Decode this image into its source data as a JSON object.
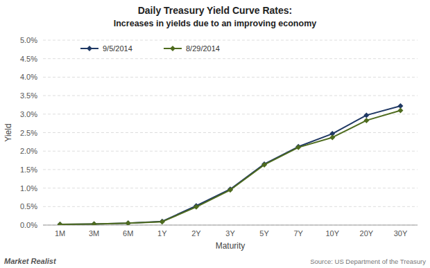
{
  "chart_data": {
    "type": "line",
    "title": "Daily Treasury Yield Curve Rates:",
    "subtitle": "Increases in yields due to an improving economy",
    "x_label": "Maturity",
    "y_label": "Yield",
    "annotations": [
      "Market Realist",
      "Source: US Department of the Treasury"
    ],
    "categories": [
      "1M",
      "3M",
      "6M",
      "1Y",
      "2Y",
      "3Y",
      "5Y",
      "7Y",
      "10Y",
      "20Y",
      "30Y"
    ],
    "series": [
      {
        "name": "9/5/2014",
        "color": "#1f3864",
        "values": [
          0.02,
          0.03,
          0.05,
          0.1,
          0.52,
          0.97,
          1.65,
          2.12,
          2.47,
          2.97,
          3.22
        ]
      },
      {
        "name": "8/29/2014",
        "color": "#4e6b1e",
        "values": [
          0.02,
          0.03,
          0.05,
          0.09,
          0.49,
          0.95,
          1.63,
          2.1,
          2.37,
          2.83,
          3.1
        ]
      }
    ],
    "ylim": [
      0.0,
      5.0
    ],
    "yticks": [
      {
        "value": 0.0,
        "label": "0.0%"
      },
      {
        "value": 0.5,
        "label": "0.5%"
      },
      {
        "value": 1.0,
        "label": "1.0%"
      },
      {
        "value": 1.5,
        "label": "1.5%"
      },
      {
        "value": 2.0,
        "label": "2.0%"
      },
      {
        "value": 2.5,
        "label": "2.5%"
      },
      {
        "value": 3.0,
        "label": "3.0%"
      },
      {
        "value": 3.5,
        "label": "3.5%"
      },
      {
        "value": 4.0,
        "label": "4.0%"
      },
      {
        "value": 4.5,
        "label": "4.5%"
      },
      {
        "value": 5.0,
        "label": "5.0%"
      }
    ],
    "grid": true,
    "legend": "upper left",
    "marker": "diamond"
  }
}
